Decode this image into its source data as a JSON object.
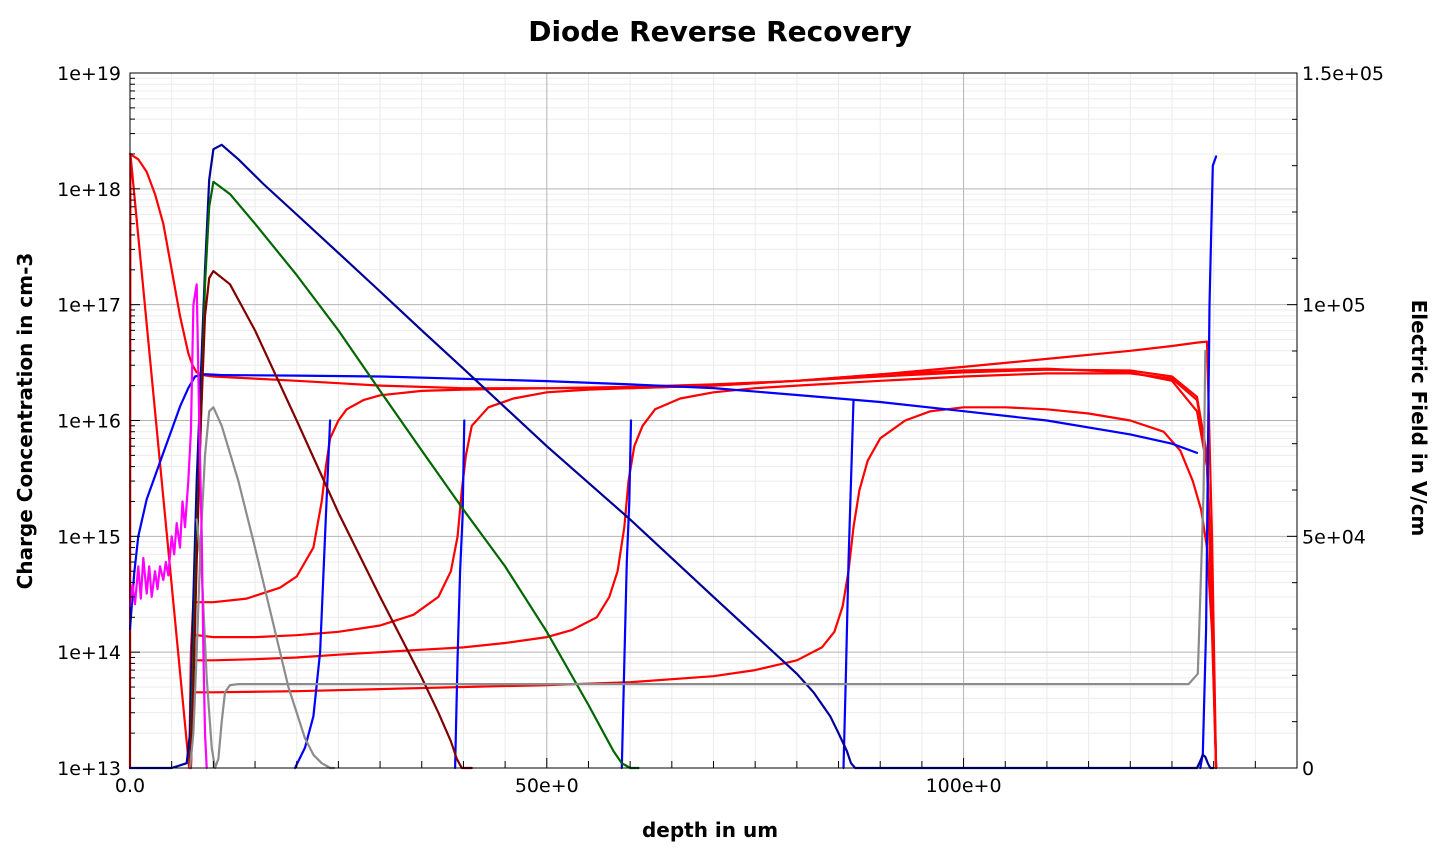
{
  "chart_data": {
    "type": "line",
    "title": "Diode Reverse Recovery",
    "xlabel": "depth in um",
    "ylabel": "Charge Concentration in cm-3",
    "y2label": "Electric Field in V/cm",
    "xlim": [
      0,
      140
    ],
    "ylim": [
      10000000000000.0,
      1e+19
    ],
    "y_scale": "log",
    "y2lim": [
      0,
      150000
    ],
    "grid": true,
    "x_ticks": [
      "0.0",
      "50e+0",
      "100e+0"
    ],
    "x_tick_values": [
      0,
      50,
      100
    ],
    "y_ticks": [
      "1e+13",
      "1e+14",
      "1e+15",
      "1e+16",
      "1e+17",
      "1e+18",
      "1e+19"
    ],
    "y_tick_values": [
      10000000000000.0,
      100000000000000.0,
      1000000000000000.0,
      1e+16,
      1e+17,
      1e+18,
      1e+19
    ],
    "y2_ticks": [
      "0",
      "5e+04",
      "1e+05",
      "1.5e+05"
    ],
    "y2_tick_values": [
      0,
      50000,
      100000,
      150000
    ],
    "colors": {
      "red": "#ff0000",
      "blue": "#0000ff",
      "navy": "#000099",
      "green": "#006600",
      "darkred": "#800000",
      "gray": "#8c8c8c",
      "magenta": "#ff00ff"
    },
    "series": [
      {
        "color": "red",
        "axis": "left",
        "x": [
          0,
          1,
          2,
          3,
          4,
          5,
          6,
          7,
          7.5,
          8,
          9,
          10,
          15,
          20,
          25,
          30,
          40,
          50,
          60,
          70,
          80,
          90,
          100,
          110,
          120,
          125,
          128,
          129.2,
          129.8,
          130.3
        ],
        "y": [
          2e+18,
          1.8e+18,
          1.4e+18,
          9e+17,
          5e+17,
          2e+17,
          8e+16,
          3.8e+16,
          3e+16,
          2.6e+16,
          2.45e+16,
          2.4e+16,
          2.3e+16,
          2.2e+16,
          2.1e+16,
          2e+16,
          1.9e+16,
          1.9e+16,
          1.9e+16,
          2e+16,
          2.2e+16,
          2.5e+16,
          2.9e+16,
          3.4e+16,
          4e+16,
          4.4e+16,
          4.7e+16,
          4.8e+16,
          1000000000000000.0,
          10000000000000.0
        ]
      },
      {
        "color": "red",
        "axis": "left",
        "x": [
          0,
          0.05,
          7.1,
          7.3,
          7.6,
          8,
          10,
          14,
          18,
          20,
          22,
          23,
          23.5,
          24,
          25,
          26,
          28,
          30,
          35,
          40,
          50,
          60,
          70,
          80,
          90,
          100,
          110,
          120,
          125,
          128,
          129.2,
          129.8,
          130.3
        ],
        "y": [
          10000000000000.0,
          2e+18,
          10000000000000.0,
          100000000000000.0,
          280000000000000.0,
          270000000000000.0,
          270000000000000.0,
          290000000000000.0,
          360000000000000.0,
          450000000000000.0,
          800000000000000.0,
          2000000000000000.0,
          4000000000000000.0,
          7000000000000000.0,
          1e+16,
          1.25e+16,
          1.5e+16,
          1.65e+16,
          1.8e+16,
          1.85e+16,
          1.9e+16,
          1.95e+16,
          2.05e+16,
          2.2e+16,
          2.5e+16,
          2.7e+16,
          2.8e+16,
          2.6e+16,
          2.2e+16,
          1.2e+16,
          4000000000000000.0,
          200000000000000.0,
          10000000000000.0
        ]
      },
      {
        "color": "red",
        "axis": "left",
        "x": [
          7.3,
          7.6,
          8,
          10,
          15,
          20,
          25,
          30,
          34,
          37,
          38.5,
          39.3,
          39.8,
          40.3,
          41,
          43,
          46,
          50,
          55,
          60,
          70,
          80,
          90,
          100,
          110,
          120,
          125,
          128,
          129.2,
          129.8,
          130.3
        ],
        "y": [
          10000000000000.0,
          140000000000000.0,
          140000000000000.0,
          135000000000000.0,
          135000000000000.0,
          140000000000000.0,
          150000000000000.0,
          170000000000000.0,
          210000000000000.0,
          300000000000000.0,
          500000000000000.0,
          1000000000000000.0,
          2500000000000000.0,
          5000000000000000.0,
          9000000000000000.0,
          1.3e+16,
          1.55e+16,
          1.75e+16,
          1.85e+16,
          1.9e+16,
          2e+16,
          2.2e+16,
          2.4e+16,
          2.6e+16,
          2.75e+16,
          2.7e+16,
          2.4e+16,
          1.6e+16,
          5000000000000000.0,
          300000000000000.0,
          10000000000000.0
        ]
      },
      {
        "color": "red",
        "axis": "left",
        "x": [
          7.3,
          7.6,
          8,
          10,
          15,
          20,
          25,
          30,
          35,
          40,
          45,
          50,
          53,
          56,
          57.5,
          58.5,
          59.3,
          59.8,
          60.5,
          61.5,
          63,
          66,
          70,
          75,
          80,
          90,
          100,
          110,
          120,
          125,
          128,
          129.2,
          129.8,
          130.3
        ],
        "y": [
          10000000000000.0,
          85000000000000.0,
          85000000000000.0,
          85000000000000.0,
          87000000000000.0,
          90000000000000.0,
          95000000000000.0,
          100000000000000.0,
          105000000000000.0,
          110000000000000.0,
          120000000000000.0,
          135000000000000.0,
          155000000000000.0,
          200000000000000.0,
          300000000000000.0,
          500000000000000.0,
          1200000000000000.0,
          3000000000000000.0,
          6000000000000000.0,
          9000000000000000.0,
          1.25e+16,
          1.55e+16,
          1.75e+16,
          1.9e+16,
          2e+16,
          2.2e+16,
          2.4e+16,
          2.55e+16,
          2.55e+16,
          2.3e+16,
          1.5e+16,
          5000000000000000.0,
          300000000000000.0,
          10000000000000.0
        ]
      },
      {
        "color": "red",
        "axis": "left",
        "x": [
          7.3,
          7.6,
          8,
          10,
          20,
          30,
          40,
          50,
          60,
          70,
          75,
          80,
          83,
          84.5,
          85.5,
          86.2,
          86.8,
          87.5,
          88.5,
          90,
          93,
          96,
          100,
          105,
          110,
          115,
          120,
          124,
          126,
          127.5,
          128.5,
          129.2,
          129.8,
          130.3
        ],
        "y": [
          10000000000000.0,
          45000000000000.0,
          45000000000000.0,
          45000000000000.0,
          46000000000000.0,
          48000000000000.0,
          50000000000000.0,
          52000000000000.0,
          55000000000000.0,
          62000000000000.0,
          70000000000000.0,
          85000000000000.0,
          110000000000000.0,
          150000000000000.0,
          250000000000000.0,
          500000000000000.0,
          1200000000000000.0,
          2500000000000000.0,
          4500000000000000.0,
          7000000000000000.0,
          1e+16,
          1.2e+16,
          1.3e+16,
          1.3e+16,
          1.25e+16,
          1.15e+16,
          1e+16,
          8000000000000000.0,
          5500000000000000.0,
          3000000000000000.0,
          1700000000000000.0,
          800000000000000.0,
          150000000000000.0,
          10000000000000.0
        ]
      },
      {
        "color": "blue",
        "axis": "right",
        "x": [
          0,
          0.5,
          1,
          2,
          3,
          4,
          5,
          6,
          7,
          7.8,
          8.5,
          9,
          10,
          11
        ],
        "y": [
          30000,
          42000,
          50000,
          58000,
          63000,
          68000,
          73000,
          78000,
          82000,
          84500,
          84800,
          85000,
          84900,
          84800
        ]
      },
      {
        "color": "blue",
        "axis": "right",
        "x": [
          11,
          20,
          30,
          40,
          50,
          60,
          70,
          80,
          90,
          100,
          110,
          120,
          125,
          128
        ],
        "y": [
          84800,
          84700,
          84500,
          84000,
          83500,
          82800,
          82000,
          80500,
          79000,
          77000,
          75000,
          72000,
          70000,
          68000
        ]
      },
      {
        "color": "blue",
        "axis": "left",
        "x": [
          19.8,
          21,
          22,
          22.8,
          23.5,
          24
        ],
        "y": [
          10000000000000.0,
          15000000000000.0,
          28000000000000.0,
          100000000000000.0,
          1500000000000000.0,
          1e+16
        ]
      },
      {
        "color": "blue",
        "axis": "left",
        "x": [
          39,
          39.3,
          39.6,
          39.9,
          40.1
        ],
        "y": [
          10000000000000.0,
          90000000000000.0,
          500000000000000.0,
          1500000000000000.0,
          1e+16
        ]
      },
      {
        "color": "blue",
        "axis": "left",
        "x": [
          59,
          59.3,
          59.6,
          59.9,
          60.1
        ],
        "y": [
          10000000000000.0,
          80000000000000.0,
          600000000000000.0,
          2000000000000000.0,
          1e+16
        ]
      },
      {
        "color": "blue",
        "axis": "left",
        "x": [
          85.6,
          85.9,
          86.2,
          86.5,
          86.8
        ],
        "y": [
          10000000000000.0,
          70000000000000.0,
          600000000000000.0,
          3000000000000000.0,
          1.5e+16
        ]
      },
      {
        "color": "blue",
        "axis": "right",
        "x": [
          128.4,
          128.7,
          129.1,
          129.5,
          129.9,
          130.3
        ],
        "y": [
          0,
          3000,
          30000,
          100000,
          130000,
          132000
        ]
      },
      {
        "color": "navy",
        "axis": "left",
        "x": [
          0,
          5,
          6.8,
          7.2,
          7.6,
          8,
          8.5,
          9,
          9.5,
          10,
          11,
          13,
          16,
          20,
          25,
          30,
          35,
          40,
          50,
          60,
          70,
          80,
          82,
          84,
          85,
          86,
          86.5,
          87,
          90,
          100,
          110,
          120,
          128,
          128.4,
          128.7,
          129,
          129.3,
          129.6,
          130
        ],
        "y": [
          10000000000000.0,
          10000000000000.0,
          11000000000000.0,
          20000000000000.0,
          300000000000000.0,
          3000000000000000.0,
          2.5e+16,
          2e+17,
          1.2e+18,
          2.2e+18,
          2.4e+18,
          1.8e+18,
          1.1e+18,
          6e+17,
          2.8e+17,
          1.3e+17,
          6e+16,
          2.8e+16,
          6000000000000000.0,
          1400000000000000.0,
          300000000000000.0,
          65000000000000.0,
          45000000000000.0,
          28000000000000.0,
          20000000000000.0,
          14000000000000.0,
          11000000000000.0,
          10000000000000.0,
          10000000000000.0,
          10000000000000.0,
          10000000000000.0,
          10000000000000.0,
          10000000000000.0,
          11500000000000.0,
          13000000000000.0,
          12500000000000.0,
          11000000000000.0,
          10000000000000.0,
          10000000000000.0
        ]
      },
      {
        "color": "green",
        "axis": "left",
        "x": [
          7.2,
          7.6,
          8,
          8.5,
          9,
          9.5,
          10,
          12,
          15,
          20,
          25,
          30,
          35,
          40,
          45,
          50,
          55,
          57,
          58,
          59,
          60,
          61
        ],
        "y": [
          10000000000000.0,
          100000000000000.0,
          1000000000000000.0,
          1e+16,
          1.5e+17,
          7e+17,
          1.15e+18,
          9e+17,
          5e+17,
          1.8e+17,
          6e+16,
          1.8e+16,
          5500000000000000.0,
          1700000000000000.0,
          550000000000000.0,
          150000000000000.0,
          35000000000000.0,
          19000000000000.0,
          14000000000000.0,
          11000000000000.0,
          10000000000000.0,
          10000000000000.0
        ]
      },
      {
        "color": "darkred",
        "axis": "left",
        "x": [
          7.2,
          7.6,
          8,
          8.5,
          9,
          9.5,
          10,
          12,
          15,
          20,
          25,
          30,
          35,
          37,
          38.5,
          39.2,
          39.8,
          40.5,
          41
        ],
        "y": [
          10000000000000.0,
          50000000000000.0,
          600000000000000.0,
          1e+16,
          8e+16,
          1.7e+17,
          1.95e+17,
          1.5e+17,
          6e+16,
          1e+16,
          1600000000000000.0,
          300000000000000.0,
          60000000000000.0,
          30000000000000.0,
          17000000000000.0,
          12000000000000.0,
          10000000000000.0,
          10000000000000.0,
          10000000000000.0
        ]
      },
      {
        "color": "gray",
        "axis": "left",
        "x": [
          7.2,
          7.6,
          8,
          8.5,
          9,
          9.5,
          10,
          11,
          13,
          15,
          17,
          19,
          21,
          22,
          23,
          23.5,
          24,
          24.5
        ],
        "y": [
          10000000000000.0,
          20000000000000.0,
          100000000000000.0,
          1000000000000000.0,
          5000000000000000.0,
          1.2e+16,
          1.3e+16,
          9000000000000000.0,
          3000000000000000.0,
          800000000000000.0,
          200000000000000.0,
          50000000000000.0,
          18000000000000.0,
          13000000000000.0,
          11000000000000.0,
          10500000000000.0,
          10000000000000.0,
          10000000000000.0
        ]
      },
      {
        "color": "gray",
        "axis": "left",
        "x": [
          8,
          8.6,
          9.2,
          9.8,
          10.2,
          10.6,
          11,
          11.4,
          12,
          13,
          15,
          20,
          30,
          50,
          70,
          90,
          110,
          120,
          127,
          128.1,
          128.5,
          128.8,
          129
        ],
        "y": [
          1400000000000000.0,
          500000000000000.0,
          60000000000000.0,
          15000000000000.0,
          10000000000000.0,
          12000000000000.0,
          25000000000000.0,
          45000000000000.0,
          52000000000000.0,
          53000000000000.0,
          53000000000000.0,
          53000000000000.0,
          53000000000000.0,
          53000000000000.0,
          53000000000000.0,
          53000000000000.0,
          53000000000000.0,
          53000000000000.0,
          53000000000000.0,
          65000000000000.0,
          500000000000000.0,
          2500000000000000.0,
          4e+16
        ]
      },
      {
        "color": "magenta",
        "axis": "left",
        "x": [
          0,
          0.3,
          0.6,
          1,
          1.3,
          1.6,
          2,
          2.3,
          2.6,
          3,
          3.3,
          3.6,
          4,
          4.3,
          4.6,
          5,
          5.3,
          5.6,
          6,
          6.3,
          6.6,
          7,
          7.3,
          7.6,
          8,
          8.3,
          8.6,
          8.8,
          9,
          9.2
        ],
        "y": [
          250000000000000.0,
          380000000000000.0,
          260000000000000.0,
          550000000000000.0,
          290000000000000.0,
          650000000000000.0,
          320000000000000.0,
          550000000000000.0,
          300000000000000.0,
          500000000000000.0,
          350000000000000.0,
          550000000000000.0,
          420000000000000.0,
          600000000000000.0,
          460000000000000.0,
          1000000000000000.0,
          700000000000000.0,
          1300000000000000.0,
          800000000000000.0,
          2000000000000000.0,
          1200000000000000.0,
          3000000000000000.0,
          8000000000000000.0,
          1e+17,
          1.5e+17,
          1e+16,
          1000000000000000.0,
          100000000000000.0,
          20000000000000.0,
          10000000000000.0
        ]
      }
    ]
  }
}
